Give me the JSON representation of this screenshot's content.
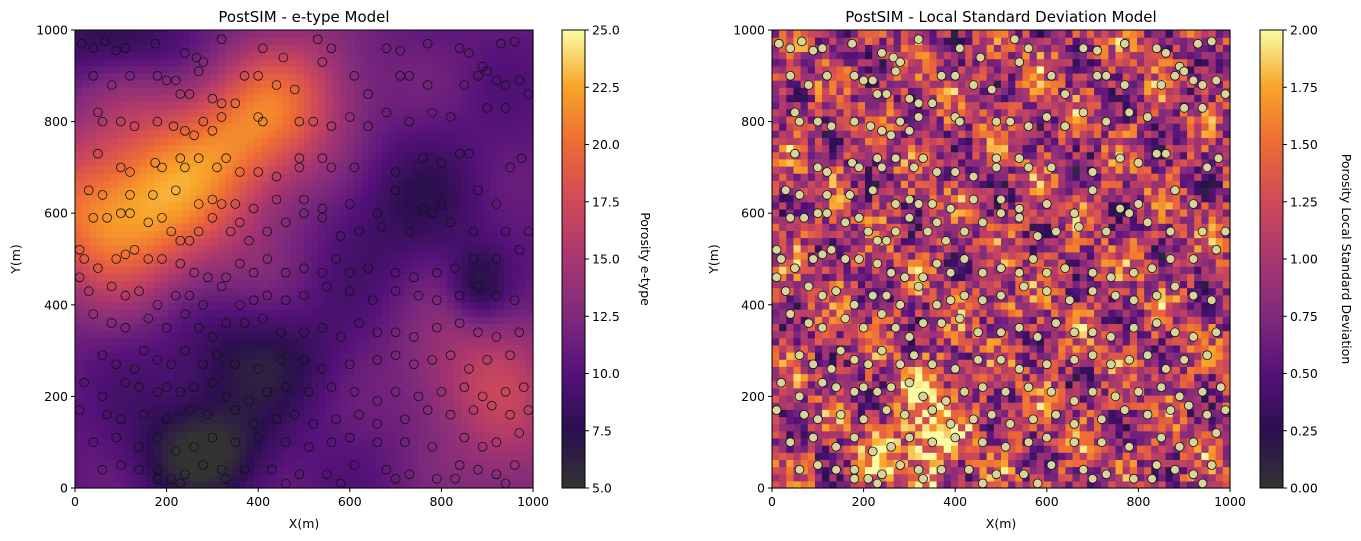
{
  "chart_data": [
    {
      "type": "heatmap",
      "title": "PostSIM - e-type Model",
      "xlabel": "X(m)",
      "ylabel": "Y(m)",
      "xlim": [
        0,
        1000
      ],
      "ylim": [
        0,
        1000
      ],
      "xticks": [
        "0",
        "200",
        "400",
        "600",
        "800",
        "1000"
      ],
      "yticks": [
        "0",
        "200",
        "400",
        "600",
        "800",
        "1000"
      ],
      "colormap": "inferno",
      "colorbar": {
        "label": "Porosity e-type",
        "range": [
          5.0,
          25.0
        ],
        "ticks": [
          "5.0",
          "7.5",
          "10.0",
          "12.5",
          "15.0",
          "17.5",
          "20.0",
          "22.5",
          "25.0"
        ]
      },
      "field_trend": "High values (about 17.5-25) concentrated in the upper-left and along a north-east band; lowest values (about 5-7.5) in the lower-centre around X 200-350, Y 0-200, and low pockets near X 880, Y 450",
      "marker_style": "hollow black circles"
    },
    {
      "type": "heatmap",
      "title": "PostSIM - Local Standard Deviation Model",
      "xlabel": "X(m)",
      "ylabel": "Y(m)",
      "xlim": [
        0,
        1000
      ],
      "ylim": [
        0,
        1000
      ],
      "xticks": [
        "0",
        "200",
        "400",
        "600",
        "800",
        "1000"
      ],
      "yticks": [
        "0",
        "200",
        "400",
        "600",
        "800",
        "1000"
      ],
      "colormap": "inferno",
      "colorbar": {
        "label": "Porosity Local Standard Deviation",
        "range": [
          0.0,
          2.0
        ],
        "ticks": [
          "0.00",
          "0.25",
          "0.50",
          "0.75",
          "1.00",
          "1.25",
          "1.50",
          "1.75",
          "2.00"
        ]
      },
      "field_trend": "Noisy field of mostly 0.5-1.75 with diagonal north-east streaks; brightest patches (about 2.0) around X 280-420, Y 0-260 and X 470-530, Y 380-420",
      "marker_style": "filled khaki circles with dark edge"
    }
  ],
  "sample_points": [
    [
      15,
      970
    ],
    [
      40,
      960
    ],
    [
      65,
      975
    ],
    [
      90,
      955
    ],
    [
      110,
      960
    ],
    [
      175,
      970
    ],
    [
      240,
      950
    ],
    [
      265,
      940
    ],
    [
      320,
      980
    ],
    [
      410,
      960
    ],
    [
      455,
      940
    ],
    [
      530,
      980
    ],
    [
      560,
      960
    ],
    [
      680,
      960
    ],
    [
      710,
      955
    ],
    [
      770,
      970
    ],
    [
      840,
      960
    ],
    [
      860,
      950
    ],
    [
      930,
      970
    ],
    [
      960,
      975
    ],
    [
      40,
      900
    ],
    [
      80,
      880
    ],
    [
      120,
      900
    ],
    [
      180,
      900
    ],
    [
      200,
      890
    ],
    [
      220,
      890
    ],
    [
      230,
      860
    ],
    [
      250,
      860
    ],
    [
      270,
      910
    ],
    [
      280,
      930
    ],
    [
      300,
      850
    ],
    [
      320,
      840
    ],
    [
      350,
      840
    ],
    [
      370,
      900
    ],
    [
      400,
      900
    ],
    [
      440,
      880
    ],
    [
      480,
      870
    ],
    [
      540,
      930
    ],
    [
      610,
      900
    ],
    [
      640,
      860
    ],
    [
      710,
      900
    ],
    [
      730,
      900
    ],
    [
      770,
      880
    ],
    [
      850,
      880
    ],
    [
      880,
      900
    ],
    [
      890,
      920
    ],
    [
      900,
      910
    ],
    [
      920,
      890
    ],
    [
      940,
      880
    ],
    [
      970,
      890
    ],
    [
      50,
      820
    ],
    [
      60,
      800
    ],
    [
      100,
      800
    ],
    [
      130,
      790
    ],
    [
      180,
      800
    ],
    [
      215,
      790
    ],
    [
      240,
      780
    ],
    [
      260,
      770
    ],
    [
      280,
      800
    ],
    [
      300,
      780
    ],
    [
      320,
      810
    ],
    [
      400,
      810
    ],
    [
      410,
      800
    ],
    [
      490,
      800
    ],
    [
      520,
      800
    ],
    [
      560,
      790
    ],
    [
      600,
      810
    ],
    [
      640,
      790
    ],
    [
      680,
      820
    ],
    [
      730,
      800
    ],
    [
      780,
      820
    ],
    [
      820,
      810
    ],
    [
      900,
      830
    ],
    [
      940,
      830
    ],
    [
      990,
      860
    ],
    [
      50,
      730
    ],
    [
      100,
      700
    ],
    [
      120,
      690
    ],
    [
      175,
      710
    ],
    [
      190,
      700
    ],
    [
      230,
      720
    ],
    [
      240,
      700
    ],
    [
      270,
      720
    ],
    [
      310,
      700
    ],
    [
      330,
      720
    ],
    [
      360,
      690
    ],
    [
      400,
      690
    ],
    [
      440,
      680
    ],
    [
      490,
      720
    ],
    [
      490,
      700
    ],
    [
      540,
      720
    ],
    [
      560,
      700
    ],
    [
      610,
      700
    ],
    [
      700,
      690
    ],
    [
      760,
      720
    ],
    [
      800,
      710
    ],
    [
      840,
      730
    ],
    [
      860,
      730
    ],
    [
      950,
      700
    ],
    [
      975,
      720
    ],
    [
      30,
      650
    ],
    [
      60,
      640
    ],
    [
      120,
      640
    ],
    [
      170,
      640
    ],
    [
      220,
      650
    ],
    [
      270,
      620
    ],
    [
      300,
      630
    ],
    [
      320,
      620
    ],
    [
      350,
      620
    ],
    [
      390,
      610
    ],
    [
      440,
      630
    ],
    [
      500,
      630
    ],
    [
      540,
      610
    ],
    [
      600,
      620
    ],
    [
      660,
      600
    ],
    [
      700,
      650
    ],
    [
      760,
      610
    ],
    [
      800,
      620
    ],
    [
      880,
      650
    ],
    [
      920,
      620
    ],
    [
      40,
      590
    ],
    [
      70,
      590
    ],
    [
      100,
      600
    ],
    [
      120,
      600
    ],
    [
      160,
      580
    ],
    [
      190,
      590
    ],
    [
      210,
      560
    ],
    [
      230,
      540
    ],
    [
      250,
      540
    ],
    [
      270,
      560
    ],
    [
      300,
      590
    ],
    [
      340,
      560
    ],
    [
      360,
      580
    ],
    [
      380,
      540
    ],
    [
      420,
      560
    ],
    [
      460,
      580
    ],
    [
      500,
      600
    ],
    [
      540,
      590
    ],
    [
      580,
      550
    ],
    [
      620,
      560
    ],
    [
      670,
      570
    ],
    [
      730,
      560
    ],
    [
      780,
      600
    ],
    [
      820,
      580
    ],
    [
      870,
      560
    ],
    [
      940,
      560
    ],
    [
      990,
      560
    ],
    [
      10,
      520
    ],
    [
      20,
      500
    ],
    [
      50,
      480
    ],
    [
      90,
      500
    ],
    [
      110,
      510
    ],
    [
      130,
      520
    ],
    [
      160,
      500
    ],
    [
      190,
      500
    ],
    [
      230,
      490
    ],
    [
      260,
      470
    ],
    [
      290,
      460
    ],
    [
      330,
      460
    ],
    [
      360,
      490
    ],
    [
      390,
      470
    ],
    [
      420,
      500
    ],
    [
      460,
      470
    ],
    [
      500,
      480
    ],
    [
      540,
      470
    ],
    [
      570,
      500
    ],
    [
      600,
      470
    ],
    [
      640,
      480
    ],
    [
      700,
      470
    ],
    [
      740,
      460
    ],
    [
      790,
      470
    ],
    [
      830,
      480
    ],
    [
      870,
      500
    ],
    [
      920,
      500
    ],
    [
      970,
      520
    ],
    [
      10,
      460
    ],
    [
      30,
      430
    ],
    [
      80,
      440
    ],
    [
      110,
      420
    ],
    [
      140,
      430
    ],
    [
      180,
      400
    ],
    [
      220,
      420
    ],
    [
      250,
      420
    ],
    [
      280,
      400
    ],
    [
      320,
      440
    ],
    [
      360,
      400
    ],
    [
      390,
      410
    ],
    [
      420,
      420
    ],
    [
      460,
      410
    ],
    [
      500,
      420
    ],
    [
      550,
      440
    ],
    [
      600,
      430
    ],
    [
      650,
      410
    ],
    [
      700,
      430
    ],
    [
      750,
      420
    ],
    [
      790,
      410
    ],
    [
      840,
      420
    ],
    [
      880,
      440
    ],
    [
      920,
      420
    ],
    [
      960,
      410
    ],
    [
      40,
      380
    ],
    [
      80,
      360
    ],
    [
      110,
      350
    ],
    [
      160,
      370
    ],
    [
      200,
      350
    ],
    [
      240,
      380
    ],
    [
      270,
      350
    ],
    [
      300,
      330
    ],
    [
      330,
      360
    ],
    [
      370,
      360
    ],
    [
      410,
      370
    ],
    [
      450,
      340
    ],
    [
      500,
      340
    ],
    [
      540,
      350
    ],
    [
      580,
      330
    ],
    [
      620,
      360
    ],
    [
      660,
      340
    ],
    [
      700,
      340
    ],
    [
      740,
      330
    ],
    [
      790,
      350
    ],
    [
      840,
      360
    ],
    [
      880,
      340
    ],
    [
      920,
      330
    ],
    [
      970,
      340
    ],
    [
      60,
      290
    ],
    [
      90,
      270
    ],
    [
      130,
      260
    ],
    [
      150,
      300
    ],
    [
      180,
      280
    ],
    [
      210,
      270
    ],
    [
      240,
      300
    ],
    [
      280,
      270
    ],
    [
      310,
      290
    ],
    [
      350,
      270
    ],
    [
      400,
      260
    ],
    [
      450,
      280
    ],
    [
      500,
      280
    ],
    [
      540,
      260
    ],
    [
      600,
      270
    ],
    [
      660,
      280
    ],
    [
      700,
      290
    ],
    [
      740,
      270
    ],
    [
      780,
      280
    ],
    [
      820,
      290
    ],
    [
      860,
      260
    ],
    [
      900,
      280
    ],
    [
      950,
      290
    ],
    [
      20,
      230
    ],
    [
      60,
      200
    ],
    [
      110,
      230
    ],
    [
      140,
      220
    ],
    [
      180,
      210
    ],
    [
      200,
      220
    ],
    [
      230,
      210
    ],
    [
      260,
      220
    ],
    [
      300,
      230
    ],
    [
      330,
      200
    ],
    [
      380,
      190
    ],
    [
      420,
      210
    ],
    [
      460,
      220
    ],
    [
      510,
      210
    ],
    [
      560,
      220
    ],
    [
      610,
      210
    ],
    [
      660,
      190
    ],
    [
      700,
      210
    ],
    [
      750,
      200
    ],
    [
      800,
      210
    ],
    [
      850,
      220
    ],
    [
      890,
      200
    ],
    [
      940,
      210
    ],
    [
      980,
      220
    ],
    [
      10,
      170
    ],
    [
      70,
      160
    ],
    [
      100,
      150
    ],
    [
      150,
      160
    ],
    [
      200,
      150
    ],
    [
      250,
      170
    ],
    [
      290,
      160
    ],
    [
      350,
      170
    ],
    [
      390,
      140
    ],
    [
      440,
      150
    ],
    [
      480,
      160
    ],
    [
      520,
      140
    ],
    [
      570,
      150
    ],
    [
      620,
      160
    ],
    [
      660,
      140
    ],
    [
      720,
      150
    ],
    [
      770,
      170
    ],
    [
      820,
      160
    ],
    [
      870,
      170
    ],
    [
      910,
      180
    ],
    [
      950,
      160
    ],
    [
      990,
      170
    ],
    [
      40,
      100
    ],
    [
      90,
      110
    ],
    [
      140,
      90
    ],
    [
      180,
      110
    ],
    [
      220,
      80
    ],
    [
      260,
      90
    ],
    [
      300,
      110
    ],
    [
      350,
      100
    ],
    [
      400,
      110
    ],
    [
      460,
      100
    ],
    [
      510,
      90
    ],
    [
      560,
      100
    ],
    [
      600,
      110
    ],
    [
      660,
      100
    ],
    [
      720,
      100
    ],
    [
      780,
      90
    ],
    [
      850,
      110
    ],
    [
      890,
      90
    ],
    [
      920,
      100
    ],
    [
      970,
      120
    ],
    [
      60,
      40
    ],
    [
      100,
      50
    ],
    [
      140,
      40
    ],
    [
      180,
      40
    ],
    [
      210,
      20
    ],
    [
      240,
      30
    ],
    [
      280,
      50
    ],
    [
      320,
      40
    ],
    [
      370,
      40
    ],
    [
      430,
      40
    ],
    [
      490,
      30
    ],
    [
      550,
      30
    ],
    [
      610,
      50
    ],
    [
      680,
      40
    ],
    [
      730,
      30
    ],
    [
      790,
      20
    ],
    [
      840,
      50
    ],
    [
      880,
      40
    ],
    [
      920,
      30
    ],
    [
      960,
      50
    ],
    [
      180,
      20
    ],
    [
      230,
      10
    ],
    [
      330,
      20
    ],
    [
      460,
      10
    ],
    [
      580,
      10
    ],
    [
      700,
      20
    ],
    [
      830,
      20
    ],
    [
      940,
      10
    ]
  ]
}
